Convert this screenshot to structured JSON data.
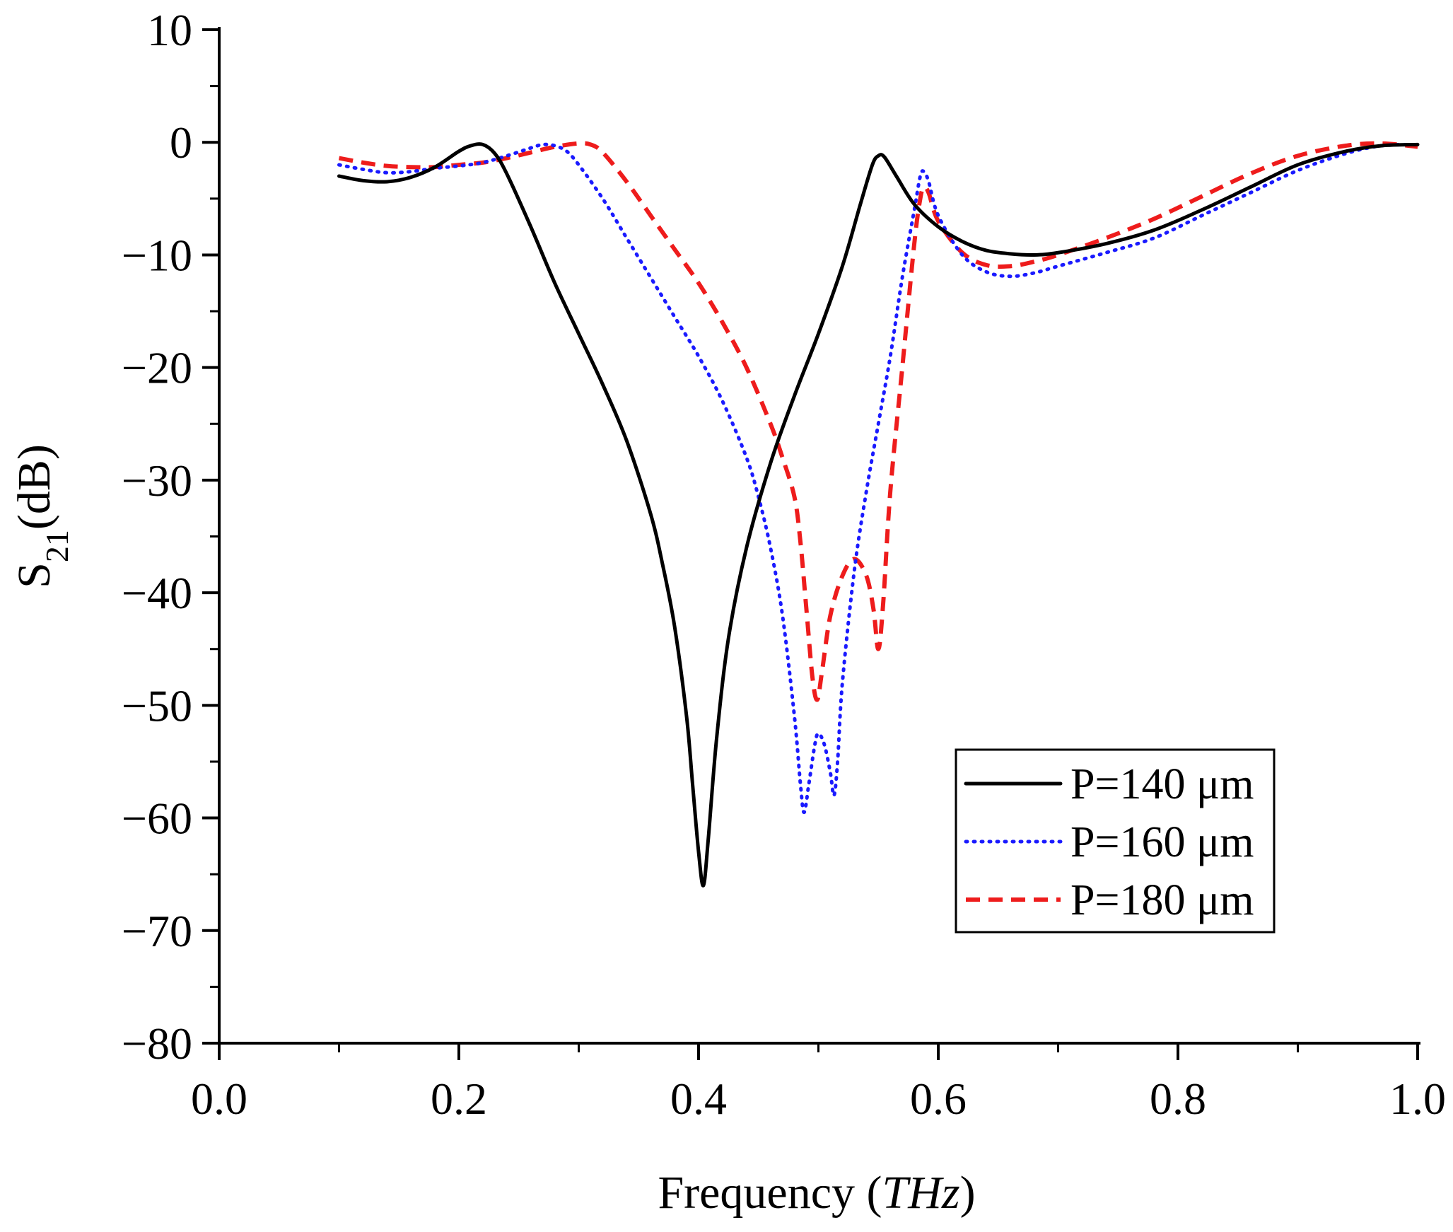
{
  "chart_data": {
    "type": "line",
    "title": "",
    "xlabel": "Frequency (THz)",
    "xlabel_parts": {
      "main": "Frequency (",
      "italic": "THz",
      "close": ")"
    },
    "ylabel": "S21(dB)",
    "ylabel_parts": {
      "main": "S",
      "sub": "21",
      "rest": "(dB)"
    },
    "xlim": [
      0.0,
      1.0
    ],
    "ylim": [
      -80,
      10
    ],
    "x_ticks": [
      0.0,
      0.2,
      0.4,
      0.6,
      0.8,
      1.0
    ],
    "x_tick_labels": [
      "0.0",
      "0.2",
      "0.4",
      "0.6",
      "0.8",
      "1.0"
    ],
    "y_ticks": [
      10,
      0,
      -10,
      -20,
      -30,
      -40,
      -50,
      -60,
      -70,
      -80
    ],
    "y_tick_labels": [
      "10",
      "0",
      "−10",
      "−20",
      "−30",
      "−40",
      "−50",
      "−60",
      "−70",
      "−80"
    ],
    "grid": false,
    "legend_position": "bottom-right",
    "series": [
      {
        "name": "P=140 μm",
        "color": "#000000",
        "style": "solid",
        "points": [
          [
            0.1,
            -3.0
          ],
          [
            0.12,
            -3.4
          ],
          [
            0.14,
            -3.5
          ],
          [
            0.16,
            -3.1
          ],
          [
            0.18,
            -2.2
          ],
          [
            0.2,
            -0.8
          ],
          [
            0.21,
            -0.3
          ],
          [
            0.22,
            -0.2
          ],
          [
            0.23,
            -1.0
          ],
          [
            0.24,
            -2.8
          ],
          [
            0.26,
            -7.5
          ],
          [
            0.28,
            -12.5
          ],
          [
            0.3,
            -17.0
          ],
          [
            0.32,
            -21.5
          ],
          [
            0.34,
            -26.5
          ],
          [
            0.36,
            -33.0
          ],
          [
            0.37,
            -37.5
          ],
          [
            0.38,
            -43.0
          ],
          [
            0.39,
            -51.0
          ],
          [
            0.395,
            -57.0
          ],
          [
            0.4,
            -63.0
          ],
          [
            0.404,
            -66.0
          ],
          [
            0.408,
            -62.0
          ],
          [
            0.415,
            -53.0
          ],
          [
            0.425,
            -44.0
          ],
          [
            0.44,
            -36.0
          ],
          [
            0.46,
            -28.5
          ],
          [
            0.48,
            -22.5
          ],
          [
            0.5,
            -17.0
          ],
          [
            0.52,
            -11.0
          ],
          [
            0.535,
            -5.5
          ],
          [
            0.545,
            -2.0
          ],
          [
            0.55,
            -1.2
          ],
          [
            0.555,
            -1.3
          ],
          [
            0.565,
            -3.0
          ],
          [
            0.58,
            -5.5
          ],
          [
            0.6,
            -7.5
          ],
          [
            0.62,
            -8.8
          ],
          [
            0.64,
            -9.6
          ],
          [
            0.66,
            -9.9
          ],
          [
            0.68,
            -10.0
          ],
          [
            0.7,
            -9.8
          ],
          [
            0.74,
            -9.0
          ],
          [
            0.78,
            -7.8
          ],
          [
            0.82,
            -6.0
          ],
          [
            0.86,
            -4.0
          ],
          [
            0.9,
            -2.0
          ],
          [
            0.94,
            -0.8
          ],
          [
            0.97,
            -0.3
          ],
          [
            1.0,
            -0.2
          ]
        ]
      },
      {
        "name": "P=160 μm",
        "color": "#1a1aff",
        "style": "dotted",
        "points": [
          [
            0.1,
            -2.0
          ],
          [
            0.12,
            -2.4
          ],
          [
            0.14,
            -2.7
          ],
          [
            0.16,
            -2.6
          ],
          [
            0.18,
            -2.3
          ],
          [
            0.2,
            -2.1
          ],
          [
            0.22,
            -1.8
          ],
          [
            0.24,
            -1.2
          ],
          [
            0.26,
            -0.5
          ],
          [
            0.27,
            -0.2
          ],
          [
            0.28,
            -0.3
          ],
          [
            0.29,
            -0.8
          ],
          [
            0.3,
            -2.0
          ],
          [
            0.32,
            -5.0
          ],
          [
            0.34,
            -8.5
          ],
          [
            0.36,
            -12.0
          ],
          [
            0.38,
            -15.5
          ],
          [
            0.4,
            -19.0
          ],
          [
            0.42,
            -23.0
          ],
          [
            0.44,
            -28.0
          ],
          [
            0.45,
            -31.5
          ],
          [
            0.46,
            -36.0
          ],
          [
            0.47,
            -42.0
          ],
          [
            0.48,
            -51.0
          ],
          [
            0.485,
            -57.0
          ],
          [
            0.488,
            -59.5
          ],
          [
            0.492,
            -57.0
          ],
          [
            0.497,
            -53.5
          ],
          [
            0.5,
            -52.5
          ],
          [
            0.505,
            -53.5
          ],
          [
            0.51,
            -56.0
          ],
          [
            0.513,
            -58.0
          ],
          [
            0.516,
            -55.0
          ],
          [
            0.52,
            -48.0
          ],
          [
            0.53,
            -38.0
          ],
          [
            0.54,
            -31.0
          ],
          [
            0.55,
            -25.0
          ],
          [
            0.56,
            -19.0
          ],
          [
            0.57,
            -12.0
          ],
          [
            0.58,
            -6.0
          ],
          [
            0.585,
            -3.0
          ],
          [
            0.588,
            -2.6
          ],
          [
            0.592,
            -3.5
          ],
          [
            0.6,
            -6.5
          ],
          [
            0.62,
            -10.0
          ],
          [
            0.64,
            -11.5
          ],
          [
            0.66,
            -11.9
          ],
          [
            0.68,
            -11.6
          ],
          [
            0.7,
            -11.0
          ],
          [
            0.74,
            -9.8
          ],
          [
            0.78,
            -8.5
          ],
          [
            0.82,
            -6.5
          ],
          [
            0.86,
            -4.5
          ],
          [
            0.9,
            -2.5
          ],
          [
            0.94,
            -1.0
          ],
          [
            0.97,
            -0.3
          ],
          [
            1.0,
            -0.2
          ]
        ]
      },
      {
        "name": "P=180 μm",
        "color": "#ee1c1c",
        "style": "dashed",
        "points": [
          [
            0.1,
            -1.4
          ],
          [
            0.12,
            -1.8
          ],
          [
            0.14,
            -2.1
          ],
          [
            0.16,
            -2.2
          ],
          [
            0.18,
            -2.2
          ],
          [
            0.2,
            -2.0
          ],
          [
            0.22,
            -1.8
          ],
          [
            0.24,
            -1.4
          ],
          [
            0.26,
            -0.9
          ],
          [
            0.28,
            -0.4
          ],
          [
            0.3,
            -0.1
          ],
          [
            0.31,
            -0.2
          ],
          [
            0.32,
            -0.9
          ],
          [
            0.34,
            -3.5
          ],
          [
            0.36,
            -6.5
          ],
          [
            0.38,
            -9.5
          ],
          [
            0.4,
            -12.5
          ],
          [
            0.42,
            -16.0
          ],
          [
            0.44,
            -20.0
          ],
          [
            0.46,
            -25.0
          ],
          [
            0.47,
            -28.0
          ],
          [
            0.48,
            -31.5
          ],
          [
            0.485,
            -35.5
          ],
          [
            0.49,
            -41.5
          ],
          [
            0.495,
            -47.5
          ],
          [
            0.499,
            -49.5
          ],
          [
            0.503,
            -47.0
          ],
          [
            0.51,
            -42.0
          ],
          [
            0.52,
            -38.5
          ],
          [
            0.53,
            -37.0
          ],
          [
            0.54,
            -38.5
          ],
          [
            0.546,
            -41.5
          ],
          [
            0.55,
            -45.0
          ],
          [
            0.554,
            -41.0
          ],
          [
            0.56,
            -31.0
          ],
          [
            0.57,
            -20.0
          ],
          [
            0.58,
            -9.0
          ],
          [
            0.585,
            -5.0
          ],
          [
            0.588,
            -4.0
          ],
          [
            0.592,
            -4.5
          ],
          [
            0.6,
            -7.0
          ],
          [
            0.62,
            -9.8
          ],
          [
            0.64,
            -10.9
          ],
          [
            0.66,
            -11.0
          ],
          [
            0.68,
            -10.6
          ],
          [
            0.7,
            -10.0
          ],
          [
            0.74,
            -8.5
          ],
          [
            0.78,
            -6.8
          ],
          [
            0.82,
            -4.8
          ],
          [
            0.86,
            -2.8
          ],
          [
            0.9,
            -1.2
          ],
          [
            0.94,
            -0.3
          ],
          [
            0.97,
            -0.1
          ],
          [
            1.0,
            -0.4
          ]
        ]
      }
    ]
  }
}
